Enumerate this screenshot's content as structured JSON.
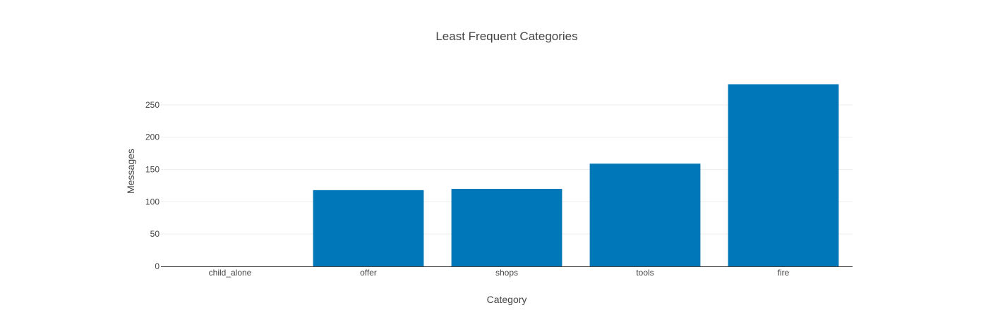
{
  "chart_data": {
    "type": "bar",
    "title": "Least Frequent Categories",
    "xlabel": "Category",
    "ylabel": "Messages",
    "categories": [
      "child_alone",
      "offer",
      "shops",
      "tools",
      "fire"
    ],
    "values": [
      0,
      118,
      120,
      159,
      282
    ],
    "ylim": [
      0,
      296.8
    ],
    "yticks": [
      0,
      50,
      100,
      150,
      200,
      250
    ],
    "grid": true,
    "legend": "none",
    "bar_color": "#0077b9"
  }
}
